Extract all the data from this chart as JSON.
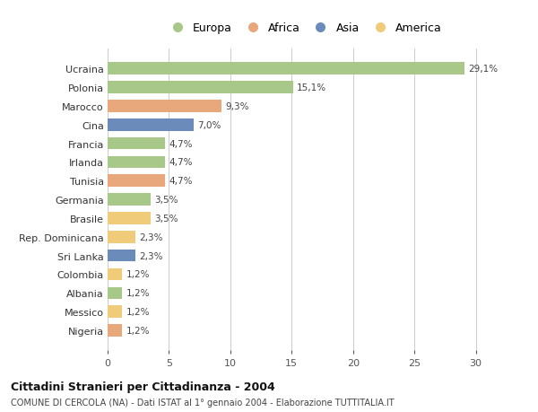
{
  "categories": [
    "Ucraina",
    "Polonia",
    "Marocco",
    "Cina",
    "Francia",
    "Irlanda",
    "Tunisia",
    "Germania",
    "Brasile",
    "Rep. Dominicana",
    "Sri Lanka",
    "Colombia",
    "Albania",
    "Messico",
    "Nigeria"
  ],
  "values": [
    29.1,
    15.1,
    9.3,
    7.0,
    4.7,
    4.7,
    4.7,
    3.5,
    3.5,
    2.3,
    2.3,
    1.2,
    1.2,
    1.2,
    1.2
  ],
  "labels": [
    "29,1%",
    "15,1%",
    "9,3%",
    "7,0%",
    "4,7%",
    "4,7%",
    "4,7%",
    "3,5%",
    "3,5%",
    "2,3%",
    "2,3%",
    "1,2%",
    "1,2%",
    "1,2%",
    "1,2%"
  ],
  "colors": [
    "#a8c88a",
    "#a8c88a",
    "#e8a87c",
    "#6b8cba",
    "#a8c88a",
    "#a8c88a",
    "#e8a87c",
    "#a8c88a",
    "#f0cc7a",
    "#f0cc7a",
    "#6b8cba",
    "#f0cc7a",
    "#a8c88a",
    "#f0cc7a",
    "#e8a87c"
  ],
  "continent_colors": {
    "Europa": "#a8c88a",
    "Africa": "#e8a87c",
    "Asia": "#6b8cba",
    "America": "#f0cc7a"
  },
  "title": "Cittadini Stranieri per Cittadinanza - 2004",
  "subtitle": "COMUNE DI CERCOLA (NA) - Dati ISTAT al 1° gennaio 2004 - Elaborazione TUTTITALIA.IT",
  "xlim": [
    0,
    32
  ],
  "xticks": [
    0,
    5,
    10,
    15,
    20,
    25,
    30
  ],
  "background_color": "#ffffff",
  "grid_color": "#cccccc"
}
